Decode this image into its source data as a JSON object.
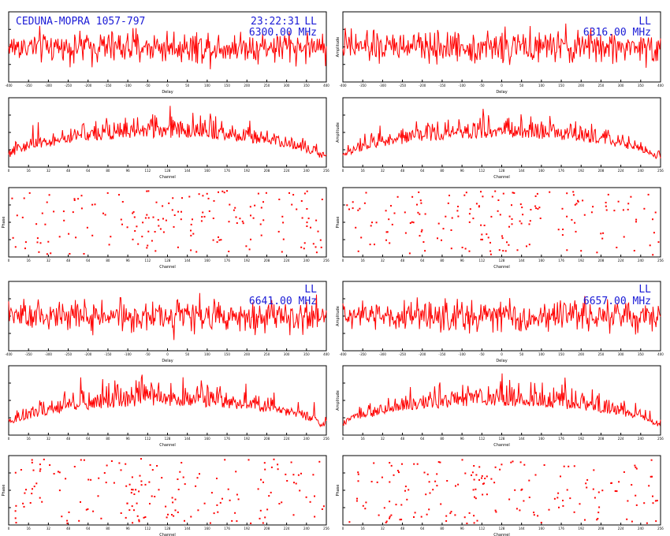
{
  "header": {
    "title": "CEDUNA-MOPRA 1057-797",
    "time": "23:22:31",
    "panels": [
      {
        "pol": "LL",
        "freq": "6300.00 MHz"
      },
      {
        "pol": "LL",
        "freq": "6316.00 MHz"
      },
      {
        "pol": "LL",
        "freq": "6641.00 MHz"
      },
      {
        "pol": "LL",
        "freq": "6657.00 MHz"
      }
    ]
  },
  "colors": {
    "trace": "#ff0000",
    "header_text": "#1a1ad6",
    "axes": "#000000"
  },
  "chart_data": [
    {
      "id": "6300-delay",
      "type": "line",
      "xlabel": "Delay",
      "ylabel": "",
      "xlim": [
        -400,
        400
      ],
      "ylim": [
        0,
        3
      ],
      "title": ""
    },
    {
      "id": "6316-delay",
      "type": "line",
      "xlabel": "Delay",
      "ylabel": "Amplitude",
      "xlim": [
        -400,
        400
      ],
      "ylim": [
        0,
        3
      ],
      "title": ""
    },
    {
      "id": "6300-channel",
      "type": "line",
      "xlabel": "Channel",
      "ylabel": "",
      "xlim": [
        0,
        256
      ],
      "ylim": [
        0,
        8
      ],
      "title": ""
    },
    {
      "id": "6316-channel",
      "type": "line",
      "xlabel": "Channel",
      "ylabel": "Amplitude",
      "xlim": [
        0,
        256
      ],
      "ylim": [
        0,
        8
      ],
      "title": ""
    },
    {
      "id": "6300-phase",
      "type": "scatter",
      "xlabel": "Channel",
      "ylabel": "Phase",
      "xlim": [
        0,
        256
      ],
      "ylim": [
        -180,
        180
      ],
      "title": ""
    },
    {
      "id": "6316-phase",
      "type": "scatter",
      "xlabel": "Channel",
      "ylabel": "Phase",
      "xlim": [
        0,
        256
      ],
      "ylim": [
        -180,
        180
      ],
      "title": ""
    },
    {
      "id": "6641-delay",
      "type": "line",
      "xlabel": "Delay",
      "ylabel": "",
      "xlim": [
        -400,
        400
      ],
      "ylim": [
        0,
        3
      ],
      "title": ""
    },
    {
      "id": "6657-delay",
      "type": "line",
      "xlabel": "Delay",
      "ylabel": "Amplitude",
      "xlim": [
        -400,
        400
      ],
      "ylim": [
        0,
        3
      ],
      "title": ""
    },
    {
      "id": "6641-channel",
      "type": "line",
      "xlabel": "Channel",
      "ylabel": "",
      "xlim": [
        0,
        256
      ],
      "ylim": [
        0,
        8
      ],
      "title": ""
    },
    {
      "id": "6657-channel",
      "type": "line",
      "xlabel": "Channel",
      "ylabel": "Amplitude",
      "xlim": [
        0,
        256
      ],
      "ylim": [
        0,
        8
      ],
      "title": ""
    },
    {
      "id": "6641-phase",
      "type": "scatter",
      "xlabel": "Channel",
      "ylabel": "Phase",
      "xlim": [
        0,
        256
      ],
      "ylim": [
        -180,
        180
      ],
      "title": ""
    },
    {
      "id": "6657-phase",
      "type": "scatter",
      "xlabel": "Channel",
      "ylabel": "Phase",
      "xlim": [
        0,
        256
      ],
      "ylim": [
        -180,
        180
      ],
      "title": ""
    }
  ]
}
